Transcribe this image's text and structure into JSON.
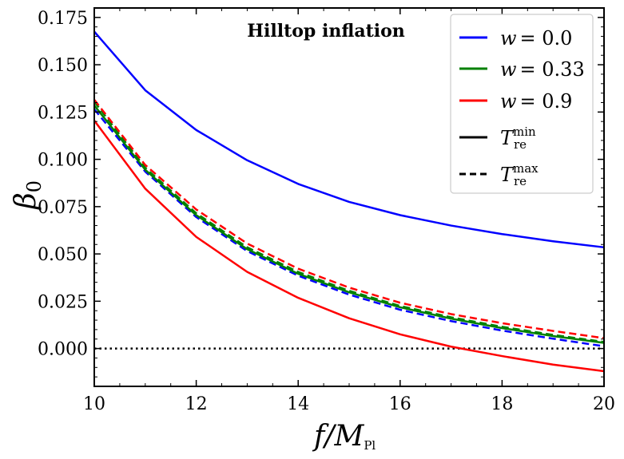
{
  "chart_data": {
    "type": "line",
    "annotation": "Hilltop inflation",
    "xlabel": "f/M",
    "xlabel_sub": "Pl",
    "ylabel": "β",
    "ylabel_sub": "0",
    "xlim": [
      10,
      20
    ],
    "ylim": [
      -0.02,
      0.18
    ],
    "xticks": [
      10,
      12,
      14,
      16,
      18,
      20
    ],
    "xtick_labels": [
      "10",
      "12",
      "14",
      "16",
      "18",
      "20"
    ],
    "yticks": [
      0.0,
      0.025,
      0.05,
      0.075,
      0.1,
      0.125,
      0.15,
      0.175
    ],
    "ytick_labels": [
      "0.000",
      "0.025",
      "0.050",
      "0.075",
      "0.100",
      "0.125",
      "0.150",
      "0.175"
    ],
    "grid": false,
    "legend_position": "top-right",
    "x": [
      10,
      11,
      12,
      13,
      14,
      15,
      16,
      17,
      18,
      19,
      20
    ],
    "series": [
      {
        "name": "w = 0.0 (T_re^min)",
        "color": "#0000ff",
        "style": "solid",
        "values": [
          0.1675,
          0.1365,
          0.1155,
          0.0995,
          0.087,
          0.0775,
          0.0705,
          0.065,
          0.0605,
          0.0567,
          0.0535
        ]
      },
      {
        "name": "w = 0.0 (T_re^max)",
        "color": "#0000ff",
        "style": "dashed",
        "values": [
          0.1265,
          0.0935,
          0.0695,
          0.0515,
          0.0385,
          0.0285,
          0.0205,
          0.0145,
          0.0095,
          0.0052,
          0.0012
        ]
      },
      {
        "name": "w = 0.33 (T_re^max)",
        "color": "#008000",
        "style": "dashed",
        "values": [
          0.1305,
          0.0955,
          0.0715,
          0.0535,
          0.0405,
          0.0305,
          0.0225,
          0.0165,
          0.0115,
          0.0072,
          0.0035
        ]
      },
      {
        "name": "w = 0.33 (T_re^min)",
        "color": "#008000",
        "style": "solid",
        "values": [
          0.1285,
          0.0945,
          0.0705,
          0.0525,
          0.0395,
          0.0297,
          0.0218,
          0.0158,
          0.0108,
          0.0066,
          0.003
        ]
      },
      {
        "name": "w = 0.9 (T_re^max)",
        "color": "#ff0000",
        "style": "dashed",
        "values": [
          0.1315,
          0.097,
          0.0735,
          0.0555,
          0.0422,
          0.0322,
          0.0242,
          0.0182,
          0.0134,
          0.0093,
          0.0055
        ]
      },
      {
        "name": "w = 0.9 (T_re^min)",
        "color": "#ff0000",
        "style": "solid",
        "values": [
          0.1205,
          0.0845,
          0.059,
          0.0405,
          0.0268,
          0.016,
          0.0075,
          0.001,
          -0.004,
          -0.0085,
          -0.012
        ]
      }
    ],
    "reference_line": {
      "y": 0.0,
      "style": "dotted",
      "color": "#000000"
    },
    "legend": [
      {
        "prefix": "w",
        "value": "= 0.0",
        "color": "#0000ff",
        "style": "solid"
      },
      {
        "prefix": "w",
        "value": "= 0.33",
        "color": "#008000",
        "style": "solid"
      },
      {
        "prefix": "w",
        "value": "= 0.9",
        "color": "#ff0000",
        "style": "solid"
      },
      {
        "prefix": "T",
        "sub": "re",
        "sup": "min",
        "color": "#000000",
        "style": "solid"
      },
      {
        "prefix": "T",
        "sub": "re",
        "sup": "max",
        "color": "#000000",
        "style": "dashed"
      }
    ]
  }
}
